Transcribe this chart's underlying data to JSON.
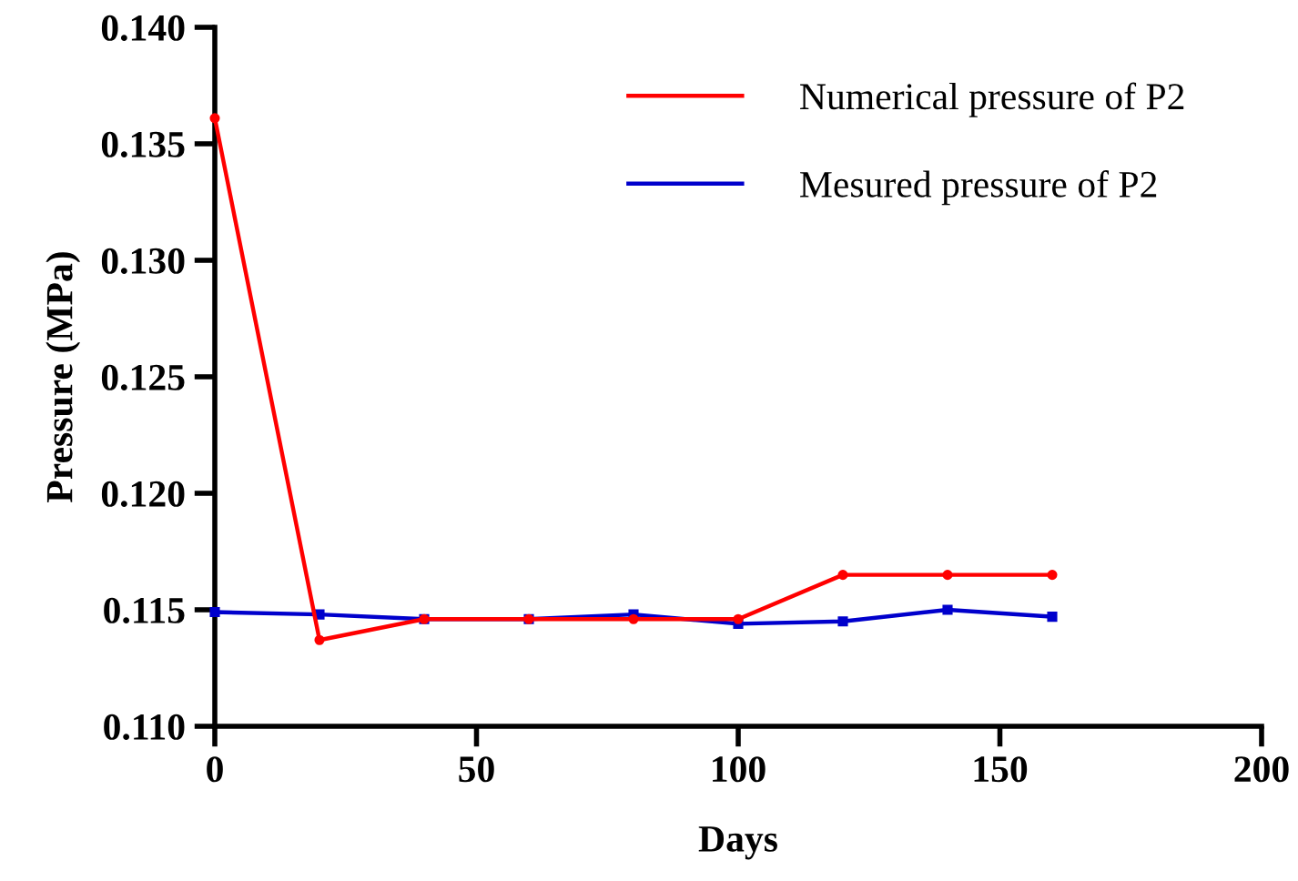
{
  "chart_data": {
    "type": "line",
    "xlabel": "Days",
    "ylabel": "Pressure (MPa)",
    "xlim": [
      0,
      200
    ],
    "xticks": [
      0,
      50,
      100,
      150,
      200
    ],
    "ylim": [
      0.11,
      0.14
    ],
    "yticks": [
      {
        "value": 0.11,
        "label": "0.110"
      },
      {
        "value": 0.115,
        "label": "0.115"
      },
      {
        "value": 0.12,
        "label": "0.120"
      },
      {
        "value": 0.125,
        "label": "0.125"
      },
      {
        "value": 0.13,
        "label": "0.130"
      },
      {
        "value": 0.135,
        "label": "0.135"
      },
      {
        "value": 0.14,
        "label": "0.140"
      }
    ],
    "x": [
      0,
      20,
      40,
      60,
      80,
      100,
      120,
      140,
      160
    ],
    "series": [
      {
        "name": "Numerical pressure of P2",
        "color": "#ff0000",
        "marker": "circle",
        "values": [
          0.1361,
          0.1137,
          0.1146,
          0.1146,
          0.1146,
          0.1146,
          0.1165,
          0.1165,
          0.1165
        ]
      },
      {
        "name": "Mesured pressure of P2",
        "color": "#0000cc",
        "marker": "square",
        "values": [
          0.1149,
          0.1148,
          0.1146,
          0.1146,
          0.1148,
          0.1144,
          0.1145,
          0.115,
          0.1147
        ]
      }
    ],
    "grid": false,
    "legend": "top right",
    "line_style": "solid"
  }
}
